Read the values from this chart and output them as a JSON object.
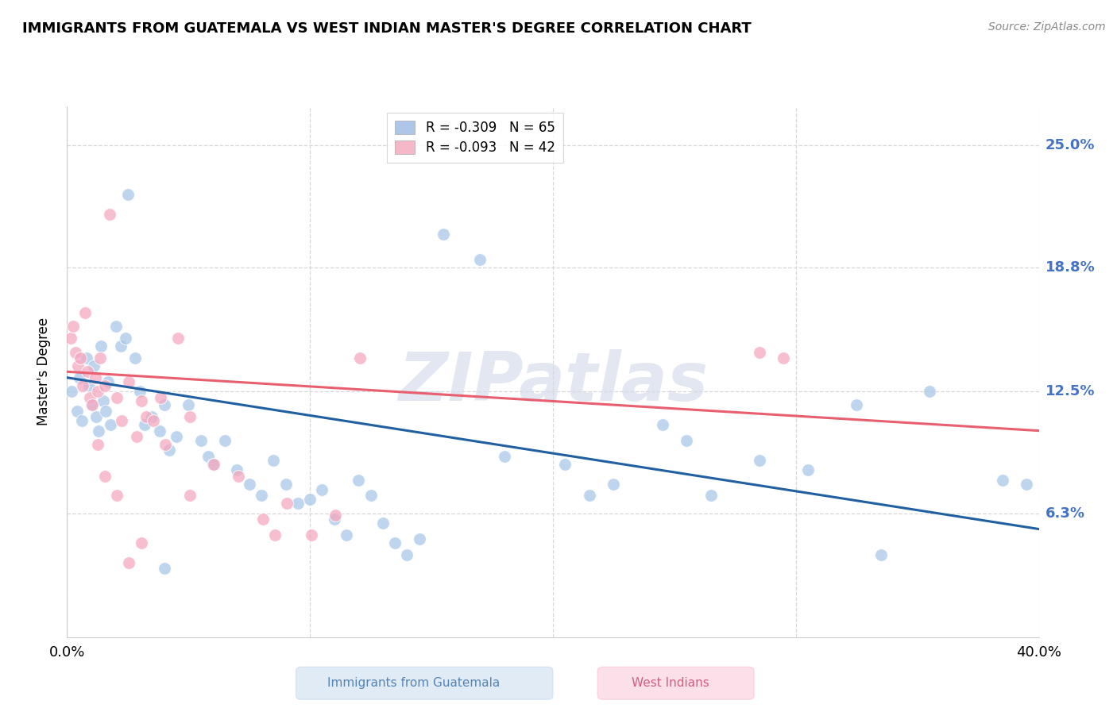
{
  "title": "IMMIGRANTS FROM GUATEMALA VS WEST INDIAN MASTER'S DEGREE CORRELATION CHART",
  "source": "Source: ZipAtlas.com",
  "ylabel": "Master's Degree",
  "ytick_labels": [
    "6.3%",
    "12.5%",
    "18.8%",
    "25.0%"
  ],
  "ytick_values": [
    6.3,
    12.5,
    18.8,
    25.0
  ],
  "xlim": [
    0.0,
    40.0
  ],
  "ylim": [
    0.0,
    27.0
  ],
  "legend_entries": [
    {
      "label": "R = -0.309   N = 65",
      "color": "#aec6e8"
    },
    {
      "label": "R = -0.093   N = 42",
      "color": "#f4b8c8"
    }
  ],
  "scatter_blue": [
    [
      0.2,
      12.5
    ],
    [
      0.4,
      11.5
    ],
    [
      0.5,
      13.2
    ],
    [
      0.6,
      11.0
    ],
    [
      0.8,
      14.2
    ],
    [
      0.9,
      12.8
    ],
    [
      1.0,
      11.8
    ],
    [
      1.1,
      13.8
    ],
    [
      1.2,
      11.2
    ],
    [
      1.3,
      10.5
    ],
    [
      1.4,
      14.8
    ],
    [
      1.5,
      12.0
    ],
    [
      1.6,
      11.5
    ],
    [
      1.7,
      13.0
    ],
    [
      1.8,
      10.8
    ],
    [
      2.0,
      15.8
    ],
    [
      2.2,
      14.8
    ],
    [
      2.4,
      15.2
    ],
    [
      2.5,
      22.5
    ],
    [
      2.8,
      14.2
    ],
    [
      3.0,
      12.5
    ],
    [
      3.2,
      10.8
    ],
    [
      3.5,
      11.2
    ],
    [
      3.8,
      10.5
    ],
    [
      4.0,
      11.8
    ],
    [
      4.2,
      9.5
    ],
    [
      4.5,
      10.2
    ],
    [
      5.0,
      11.8
    ],
    [
      5.5,
      10.0
    ],
    [
      5.8,
      9.2
    ],
    [
      6.0,
      8.8
    ],
    [
      6.5,
      10.0
    ],
    [
      7.0,
      8.5
    ],
    [
      7.5,
      7.8
    ],
    [
      8.0,
      7.2
    ],
    [
      8.5,
      9.0
    ],
    [
      9.0,
      7.8
    ],
    [
      9.5,
      6.8
    ],
    [
      10.0,
      7.0
    ],
    [
      10.5,
      7.5
    ],
    [
      11.0,
      6.0
    ],
    [
      11.5,
      5.2
    ],
    [
      12.0,
      8.0
    ],
    [
      12.5,
      7.2
    ],
    [
      13.0,
      5.8
    ],
    [
      13.5,
      4.8
    ],
    [
      14.0,
      4.2
    ],
    [
      14.5,
      5.0
    ],
    [
      15.5,
      20.5
    ],
    [
      17.0,
      19.2
    ],
    [
      18.0,
      9.2
    ],
    [
      20.5,
      8.8
    ],
    [
      21.5,
      7.2
    ],
    [
      22.5,
      7.8
    ],
    [
      24.5,
      10.8
    ],
    [
      25.5,
      10.0
    ],
    [
      26.5,
      7.2
    ],
    [
      28.5,
      9.0
    ],
    [
      30.5,
      8.5
    ],
    [
      32.5,
      11.8
    ],
    [
      33.5,
      4.2
    ],
    [
      35.5,
      12.5
    ],
    [
      38.5,
      8.0
    ],
    [
      39.5,
      7.8
    ],
    [
      4.0,
      3.5
    ]
  ],
  "scatter_pink": [
    [
      0.15,
      15.2
    ],
    [
      0.25,
      15.8
    ],
    [
      0.35,
      14.5
    ],
    [
      0.45,
      13.8
    ],
    [
      0.55,
      14.2
    ],
    [
      0.65,
      12.8
    ],
    [
      0.75,
      16.5
    ],
    [
      0.85,
      13.5
    ],
    [
      0.95,
      12.2
    ],
    [
      1.05,
      11.8
    ],
    [
      1.15,
      13.2
    ],
    [
      1.25,
      12.5
    ],
    [
      1.35,
      14.2
    ],
    [
      1.55,
      12.8
    ],
    [
      1.75,
      21.5
    ],
    [
      2.05,
      12.2
    ],
    [
      2.25,
      11.0
    ],
    [
      2.55,
      13.0
    ],
    [
      2.85,
      10.2
    ],
    [
      3.05,
      12.0
    ],
    [
      3.25,
      11.2
    ],
    [
      3.55,
      11.0
    ],
    [
      3.85,
      12.2
    ],
    [
      4.05,
      9.8
    ],
    [
      4.55,
      15.2
    ],
    [
      5.05,
      11.2
    ],
    [
      6.05,
      8.8
    ],
    [
      7.05,
      8.2
    ],
    [
      8.05,
      6.0
    ],
    [
      8.55,
      5.2
    ],
    [
      9.05,
      6.8
    ],
    [
      10.05,
      5.2
    ],
    [
      11.05,
      6.2
    ],
    [
      12.05,
      14.2
    ],
    [
      1.55,
      8.2
    ],
    [
      2.05,
      7.2
    ],
    [
      3.05,
      4.8
    ],
    [
      5.05,
      7.2
    ],
    [
      2.55,
      3.8
    ],
    [
      1.25,
      9.8
    ],
    [
      28.5,
      14.5
    ],
    [
      29.5,
      14.2
    ]
  ],
  "blue_line_x": [
    0.0,
    40.0
  ],
  "blue_line_y_start": 13.2,
  "blue_line_y_end": 5.5,
  "pink_line_x": [
    0.0,
    40.0
  ],
  "pink_line_y_start": 13.5,
  "pink_line_y_end": 10.5,
  "blue_scatter_color": "#a8c8e8",
  "pink_scatter_color": "#f4a8c0",
  "blue_line_color": "#2060a0",
  "pink_line_color": "#e86070",
  "watermark_text": "ZIPatlas",
  "watermark_color": "#d0d8e8",
  "bg_color": "#ffffff",
  "grid_color": "#d8d8d8",
  "right_label_color": "#4472C4",
  "bottom_legend": [
    {
      "label": "Immigrants from Guatemala",
      "color": "#a8c8e8"
    },
    {
      "label": "West Indians",
      "color": "#f4a8c0"
    }
  ]
}
